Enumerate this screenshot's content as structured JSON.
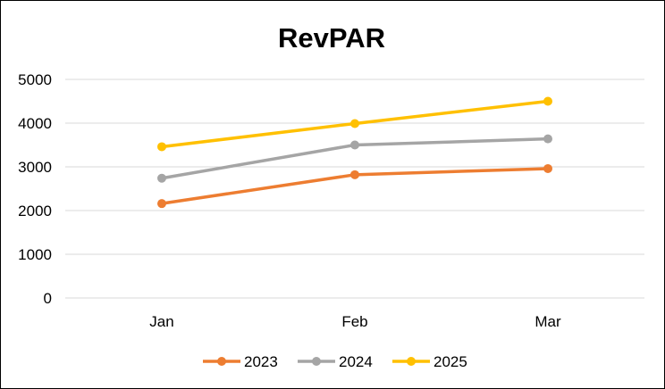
{
  "chart_data": {
    "type": "line",
    "title": "RevPAR",
    "xlabel": "",
    "ylabel": "",
    "categories": [
      "Jan",
      "Feb",
      "Mar"
    ],
    "ylim": [
      0,
      5000
    ],
    "yticks": [
      0,
      1000,
      2000,
      3000,
      4000,
      5000
    ],
    "grid": true,
    "legend_position": "bottom",
    "series": [
      {
        "name": "2023",
        "color": "#ED7D31",
        "values": [
          2160,
          2820,
          2960
        ]
      },
      {
        "name": "2024",
        "color": "#A5A5A5",
        "values": [
          2740,
          3500,
          3640
        ]
      },
      {
        "name": "2025",
        "color": "#FFC000",
        "values": [
          3460,
          3990,
          4500
        ]
      }
    ]
  }
}
